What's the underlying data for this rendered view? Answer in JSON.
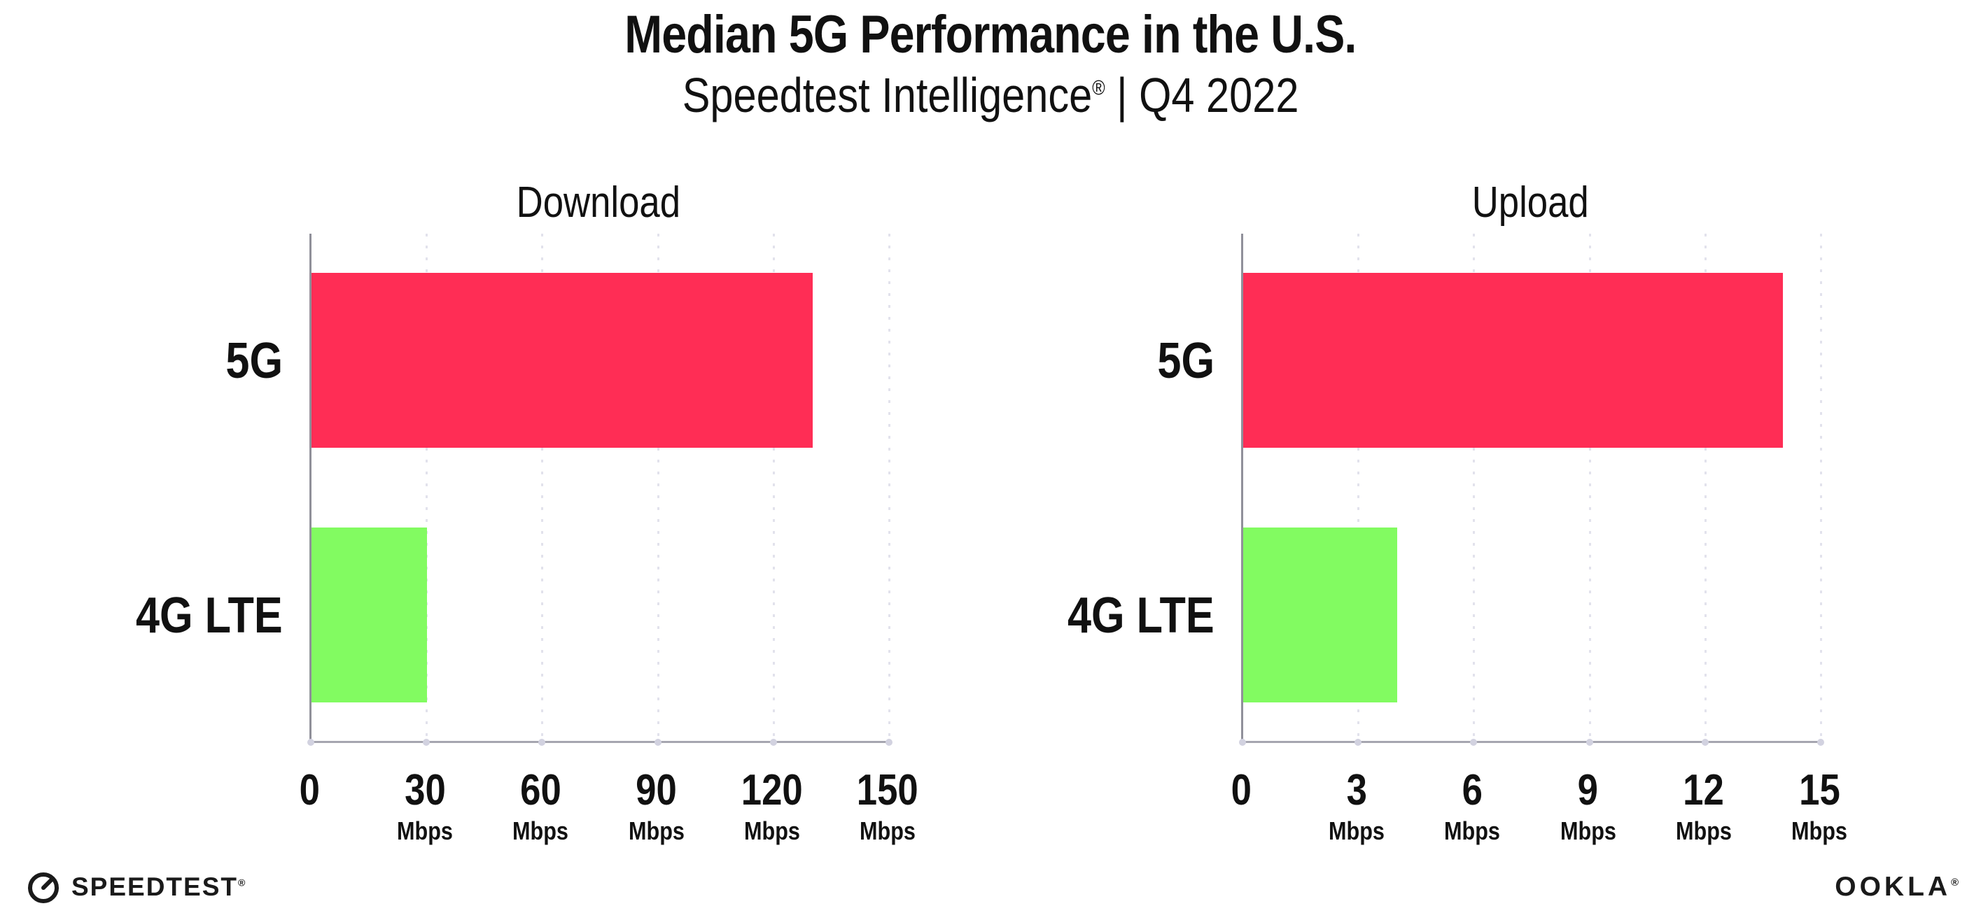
{
  "header": {
    "title": "Median 5G Performance in the U.S.",
    "subtitle_brand": "Speedtest Intelligence",
    "subtitle_reg": "®",
    "subtitle_rest": " | Q4 2022"
  },
  "footer": {
    "speedtest_label": "SPEEDTEST",
    "speedtest_reg": "®",
    "speedtest_gauge_icon": "gauge-icon",
    "ookla_label": "OOKLA",
    "ookla_reg": "®"
  },
  "colors": {
    "bar_5g": "#ff2d55",
    "bar_4g_lte": "#82fb61",
    "axis": "#a6a6b0",
    "grid": "#e2e2ec",
    "text": "#111111"
  },
  "chart_data": [
    {
      "type": "bar",
      "orientation": "horizontal",
      "title": "Download",
      "categories": [
        "5G",
        "4G LTE"
      ],
      "values": [
        130,
        30
      ],
      "value_unit": "Mbps",
      "xlim": [
        0,
        150
      ],
      "xticks": [
        0,
        30,
        60,
        90,
        120,
        150
      ],
      "tick_unit": "Mbps",
      "bar_colors": [
        "#ff2d55",
        "#82fb61"
      ],
      "grid": "dotted-vertical",
      "legend": "none"
    },
    {
      "type": "bar",
      "orientation": "horizontal",
      "title": "Upload",
      "categories": [
        "5G",
        "4G LTE"
      ],
      "values": [
        14,
        4
      ],
      "value_unit": "Mbps",
      "xlim": [
        0,
        15
      ],
      "xticks": [
        0,
        3,
        6,
        9,
        12,
        15
      ],
      "tick_unit": "Mbps",
      "bar_colors": [
        "#ff2d55",
        "#82fb61"
      ],
      "grid": "dotted-vertical",
      "legend": "none"
    }
  ]
}
